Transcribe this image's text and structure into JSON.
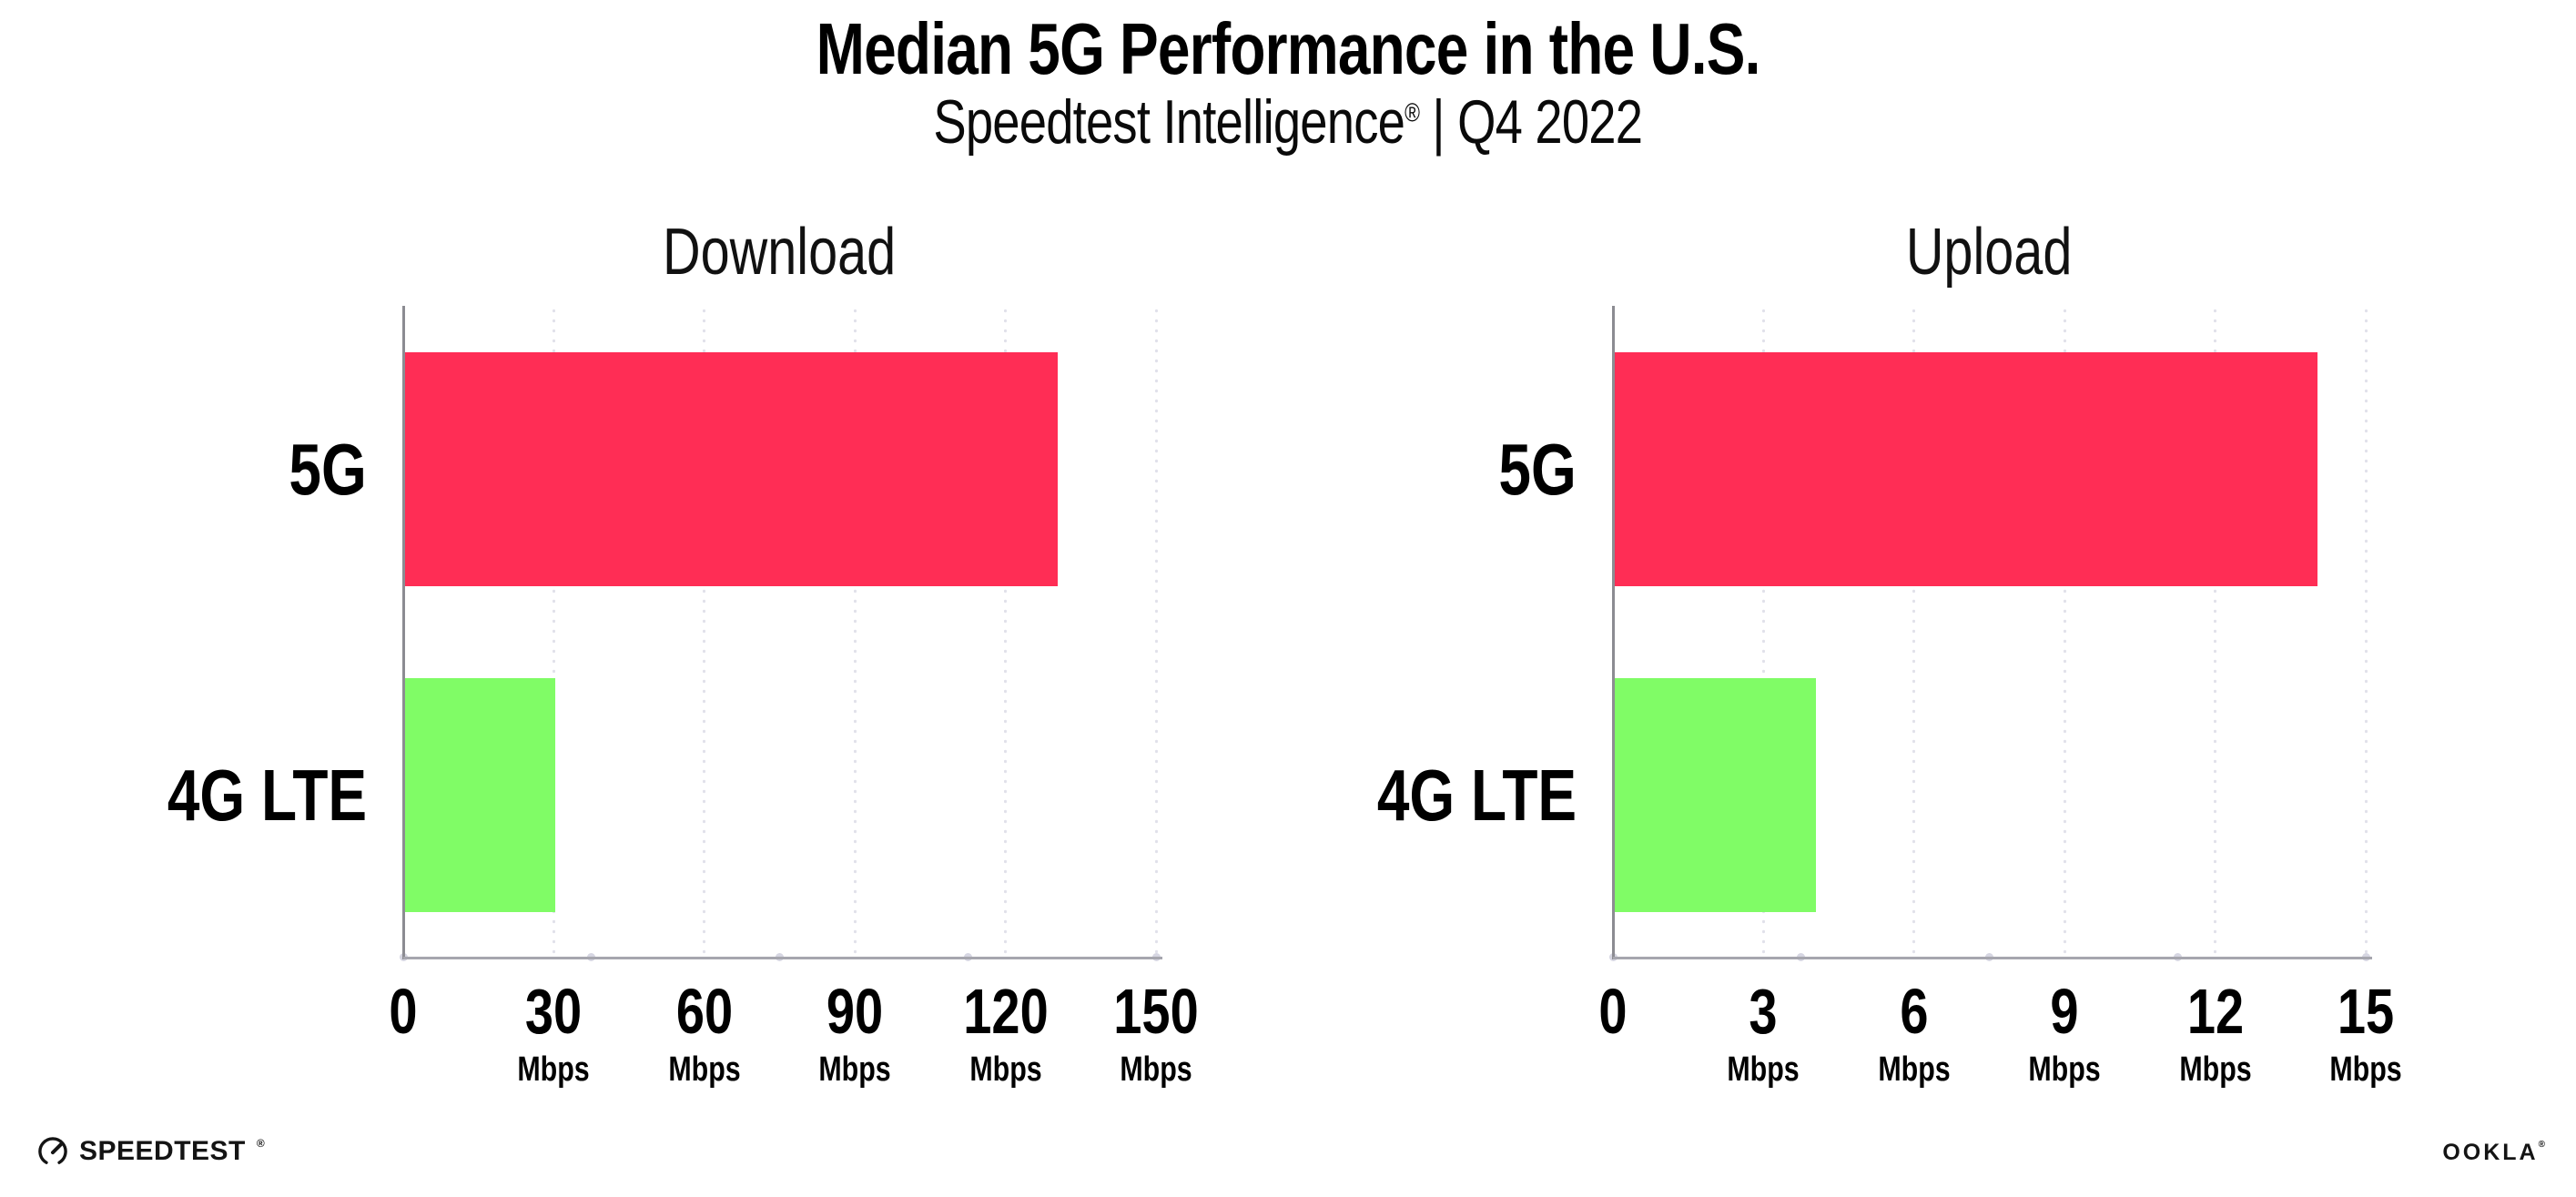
{
  "page": {
    "background": "#FFFFFF"
  },
  "header": {
    "title": "Median 5G Performance in the U.S.",
    "subtitle_brand": "Speedtest Intelligence",
    "subtitle_reg": "®",
    "subtitle_rest": " | Q4 2022"
  },
  "chart_data": [
    {
      "type": "bar",
      "orientation": "horizontal",
      "panel_title": "Download",
      "categories": [
        "5G",
        "4G LTE"
      ],
      "values": [
        130,
        30
      ],
      "unit": "Mbps",
      "xlim": [
        0,
        150
      ],
      "xticks": [
        {
          "label": "0",
          "unit": ""
        },
        {
          "label": "30",
          "unit": "Mbps"
        },
        {
          "label": "60",
          "unit": "Mbps"
        },
        {
          "label": "90",
          "unit": "Mbps"
        },
        {
          "label": "120",
          "unit": "Mbps"
        },
        {
          "label": "150",
          "unit": "Mbps"
        }
      ],
      "bar_colors": [
        "#FF2D55",
        "#80FC66"
      ],
      "grid": "dotted-vertical-at-ticks",
      "legend": "none"
    },
    {
      "type": "bar",
      "orientation": "horizontal",
      "panel_title": "Upload",
      "categories": [
        "5G",
        "4G LTE"
      ],
      "values": [
        14,
        4
      ],
      "unit": "Mbps",
      "xlim": [
        0,
        15
      ],
      "xticks": [
        {
          "label": "0",
          "unit": ""
        },
        {
          "label": "3",
          "unit": "Mbps"
        },
        {
          "label": "6",
          "unit": "Mbps"
        },
        {
          "label": "9",
          "unit": "Mbps"
        },
        {
          "label": "12",
          "unit": "Mbps"
        },
        {
          "label": "15",
          "unit": "Mbps"
        }
      ],
      "bar_colors": [
        "#FF2D55",
        "#80FC66"
      ],
      "grid": "dotted-vertical-at-ticks",
      "legend": "none"
    }
  ],
  "footer": {
    "speedtest_text": "SPEEDTEST",
    "speedtest_reg": "®",
    "ookla_text": "OOKLA",
    "ookla_reg": "®"
  },
  "colors": {
    "bar_5g": "#FF2D55",
    "bar_4g_lte": "#80FC66",
    "gridline_dot": "#E1E1EA",
    "axis_baseline": "#A6A6AE",
    "axis_y_line": "#8C8C92",
    "baseline_tick_dot": "#D6D6E2",
    "text": "#000000"
  }
}
